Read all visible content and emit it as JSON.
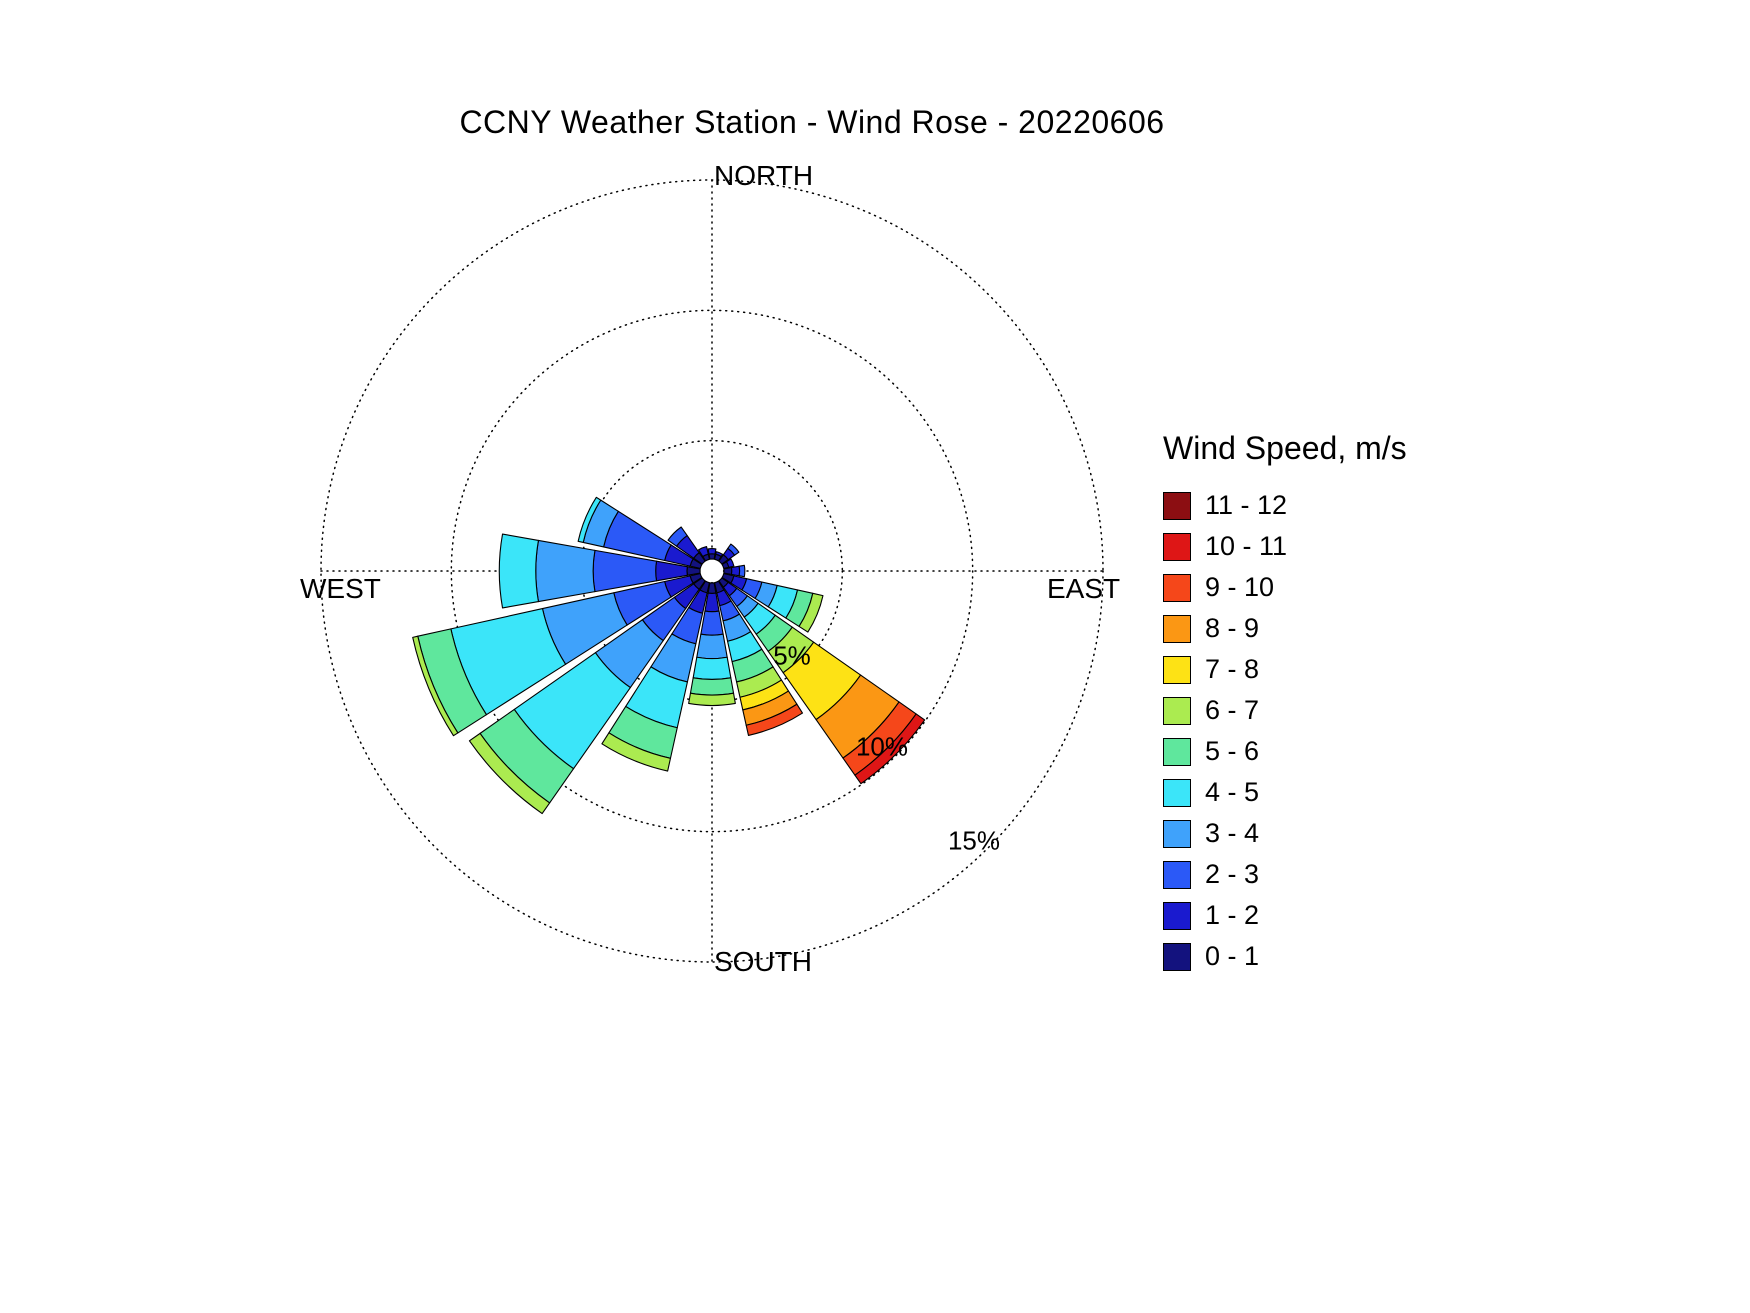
{
  "title": "CCNY Weather Station - Wind Rose - 20220606",
  "legend": {
    "title": "Wind Speed, m/s",
    "items": [
      {
        "label": "11 - 12",
        "color": "#8C0E12"
      },
      {
        "label": "10 - 11",
        "color": "#DE1616"
      },
      {
        "label": "9 - 10",
        "color": "#F5471A"
      },
      {
        "label": "8 - 9",
        "color": "#FB9714"
      },
      {
        "label": "7 - 8",
        "color": "#FDE215"
      },
      {
        "label": "6 - 7",
        "color": "#ABEB50"
      },
      {
        "label": "5 - 6",
        "color": "#5FE79D"
      },
      {
        "label": "4 - 5",
        "color": "#3BE5F9"
      },
      {
        "label": "3 - 4",
        "color": "#3FA2FB"
      },
      {
        "label": "2 - 3",
        "color": "#2B59F7"
      },
      {
        "label": "1 - 2",
        "color": "#1A1ACF"
      },
      {
        "label": "0 - 1",
        "color": "#13127E"
      }
    ]
  },
  "chart_data": {
    "type": "bar",
    "polar": true,
    "subtype": "wind_rose",
    "title": "CCNY Weather Station - Wind Rose - 20220606",
    "units": "percent frequency of wind direction, stacked by wind speed bin (m/s)",
    "legend_position": "right",
    "grid": "dotted polar rings with N-S and E-W crosshair",
    "cardinals": {
      "north": "NORTH",
      "east": "EAST",
      "south": "SOUTH",
      "west": "WEST"
    },
    "rings": [
      {
        "value": 5,
        "label": "5%"
      },
      {
        "value": 10,
        "label": "10%"
      },
      {
        "value": 15,
        "label": "15%"
      }
    ],
    "radial_max_percent": 15,
    "directions": [
      "N",
      "NNE",
      "NE",
      "ENE",
      "E",
      "ESE",
      "SE",
      "SSE",
      "S",
      "SSW",
      "SW",
      "WSW",
      "W",
      "WNW",
      "NW",
      "NNW"
    ],
    "series": [
      {
        "name": "0 - 1",
        "color": "#13127E",
        "values": [
          0.2,
          0.2,
          0.3,
          0.2,
          0.3,
          0.4,
          0.3,
          0.4,
          0.4,
          0.4,
          0.4,
          0.4,
          0.5,
          0.4,
          0.4,
          0.2
        ]
      },
      {
        "name": "1 - 2",
        "color": "#1A1ACF",
        "values": [
          0.2,
          0.1,
          0.3,
          0.2,
          0.3,
          0.5,
          0.4,
          0.5,
          0.7,
          0.8,
          0.9,
          1.0,
          1.2,
          1.0,
          0.8,
          0.3
        ]
      },
      {
        "name": "2 - 3",
        "color": "#2B59F7",
        "values": [
          0,
          0,
          0.2,
          0,
          0.2,
          0.6,
          0.5,
          0.6,
          0.9,
          1.2,
          1.5,
          2.0,
          2.4,
          2.4,
          0.4,
          0
        ]
      },
      {
        "name": "3 - 4",
        "color": "#3FA2FB",
        "values": [
          0,
          0,
          0,
          0,
          0,
          0.6,
          0.5,
          0.8,
          0.9,
          1.5,
          2.2,
          2.8,
          2.2,
          0.8,
          0,
          0
        ]
      },
      {
        "name": "4 - 5",
        "color": "#3BE5F9",
        "values": [
          0,
          0,
          0,
          0,
          0,
          0.8,
          0.8,
          0.8,
          0.8,
          1.8,
          3.8,
          3.6,
          1.4,
          0.2,
          0,
          0
        ]
      },
      {
        "name": "5 - 6",
        "color": "#5FE79D",
        "values": [
          0,
          0,
          0,
          0,
          0,
          0.6,
          0.8,
          0.8,
          0.6,
          1.2,
          1.6,
          1.3,
          0,
          0,
          0,
          0
        ]
      },
      {
        "name": "6 - 7",
        "color": "#ABEB50",
        "values": [
          0,
          0,
          0,
          0,
          0,
          0.4,
          1.0,
          0.6,
          0.4,
          0.5,
          0.5,
          0.2,
          0,
          0,
          0,
          0
        ]
      },
      {
        "name": "7 - 8",
        "color": "#FDE215",
        "values": [
          0,
          0,
          0,
          0,
          0,
          0,
          2.2,
          0.5,
          0,
          0,
          0,
          0,
          0,
          0,
          0,
          0
        ]
      },
      {
        "name": "8 - 9",
        "color": "#FB9714",
        "values": [
          0,
          0,
          0,
          0,
          0,
          0,
          1.8,
          0.6,
          0,
          0,
          0,
          0,
          0,
          0,
          0,
          0
        ]
      },
      {
        "name": "9 - 10",
        "color": "#F5471A",
        "values": [
          0,
          0,
          0,
          0,
          0,
          0,
          0.8,
          0.4,
          0,
          0,
          0,
          0,
          0,
          0,
          0,
          0
        ]
      },
      {
        "name": "10 - 11",
        "color": "#DE1616",
        "values": [
          0,
          0,
          0,
          0,
          0,
          0,
          0.4,
          0,
          0,
          0,
          0,
          0,
          0,
          0,
          0,
          0
        ]
      },
      {
        "name": "11 - 12",
        "color": "#8C0E12",
        "values": [
          0,
          0,
          0,
          0,
          0,
          0,
          0,
          0,
          0,
          0,
          0,
          0,
          0,
          0,
          0,
          0
        ]
      }
    ]
  }
}
